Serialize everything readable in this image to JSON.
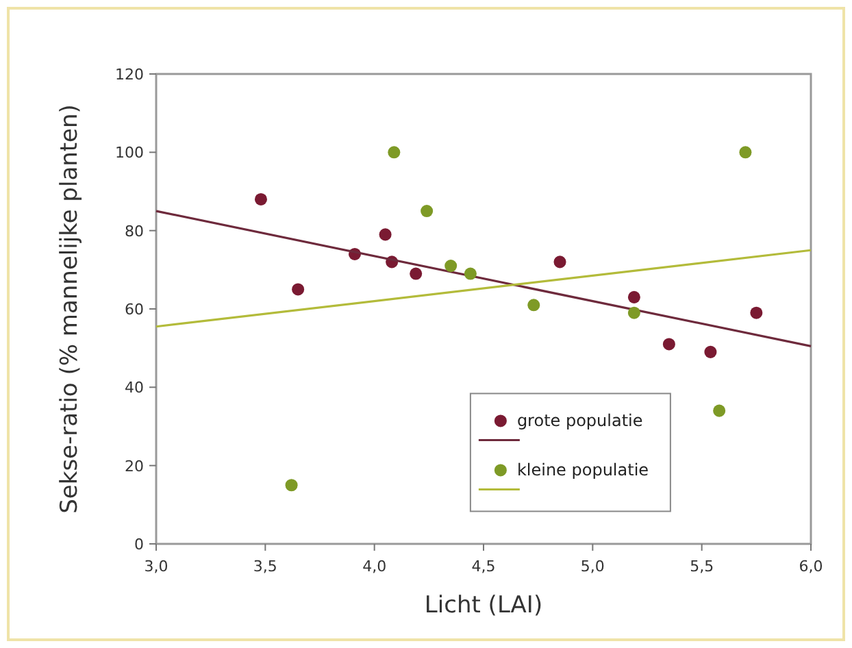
{
  "chart_data": {
    "type": "scatter",
    "xlabel": "Licht (LAI)",
    "ylabel": "Sekse-ratio (% mannelijke planten)",
    "xlim": [
      3,
      6
    ],
    "xticks": [
      {
        "value": 3,
        "label": "3,0"
      },
      {
        "value": 3.5,
        "label": "3,5"
      },
      {
        "value": 4,
        "label": "4,0"
      },
      {
        "value": 4.5,
        "label": "4,5"
      },
      {
        "value": 5,
        "label": "5,0"
      },
      {
        "value": 5.5,
        "label": "5,5"
      },
      {
        "value": 6,
        "label": "6,0"
      }
    ],
    "ylim": [
      0,
      120
    ],
    "yticks": [
      0,
      20,
      40,
      60,
      80,
      100,
      120
    ],
    "grid": false,
    "legend": "bottom right",
    "marker": "circle",
    "series": [
      {
        "name": "grote populatie",
        "color": "#7a1a32",
        "x": [
          3.48,
          3.65,
          3.91,
          4.05,
          4.08,
          4.19,
          4.85,
          5.19,
          5.35,
          5.54,
          5.75
        ],
        "values": [
          88,
          65,
          74,
          79,
          72,
          69,
          72,
          63,
          51,
          49,
          59
        ]
      },
      {
        "type": "line",
        "marker": "none",
        "color": "#6e2a3c",
        "x": [
          3,
          6
        ],
        "values": [
          85,
          50.5
        ]
      },
      {
        "name": "kleine populatie",
        "color": "#7e9a26",
        "x": [
          3.62,
          4.09,
          4.24,
          4.35,
          4.44,
          4.73,
          5.19,
          5.58,
          5.7
        ],
        "values": [
          15,
          100,
          85,
          71,
          69,
          61,
          59,
          34,
          100
        ]
      },
      {
        "type": "line",
        "marker": "none",
        "color": "#b3bb3a",
        "x": [
          3,
          6
        ],
        "values": [
          55.5,
          75
        ]
      }
    ]
  }
}
